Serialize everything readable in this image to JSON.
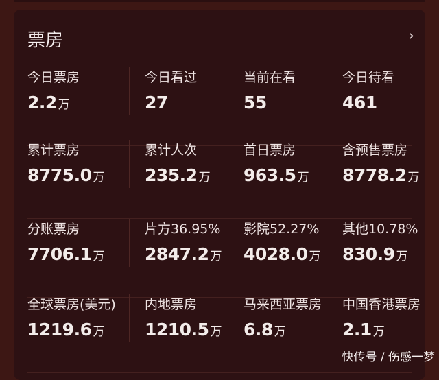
{
  "header": {
    "title": "票房",
    "more_icon": "chevron-right-icon"
  },
  "rows": [
    [
      {
        "label": "今日票房",
        "value": "2.2",
        "unit": "万"
      },
      {
        "label": "今日看过",
        "value": "27",
        "unit": ""
      },
      {
        "label": "当前在看",
        "value": "55",
        "unit": ""
      },
      {
        "label": "今日待看",
        "value": "461",
        "unit": ""
      }
    ],
    [
      {
        "label": "累计票房",
        "value": "8775.0",
        "unit": "万"
      },
      {
        "label": "累计人次",
        "value": "235.2",
        "unit": "万"
      },
      {
        "label": "首日票房",
        "value": "963.5",
        "unit": "万"
      },
      {
        "label": "含预售票房",
        "value": "8778.2",
        "unit": "万"
      }
    ],
    [
      {
        "label": "分账票房",
        "value": "7706.1",
        "unit": "万"
      },
      {
        "label": "片方36.95%",
        "value": "2847.2",
        "unit": "万"
      },
      {
        "label": "影院52.27%",
        "value": "4028.0",
        "unit": "万"
      },
      {
        "label": "其他10.78%",
        "value": "830.9",
        "unit": "万"
      }
    ],
    [
      {
        "label": "全球票房(美元)",
        "value": "1219.6",
        "unit": "万"
      },
      {
        "label": "内地票房",
        "value": "1210.5",
        "unit": "万"
      },
      {
        "label": "马来西亚票房",
        "value": "6.8",
        "unit": "万"
      },
      {
        "label": "中国香港票房",
        "value": "2.1",
        "unit": "万"
      }
    ]
  ],
  "watermark": "快传号 / 伤感一梦"
}
